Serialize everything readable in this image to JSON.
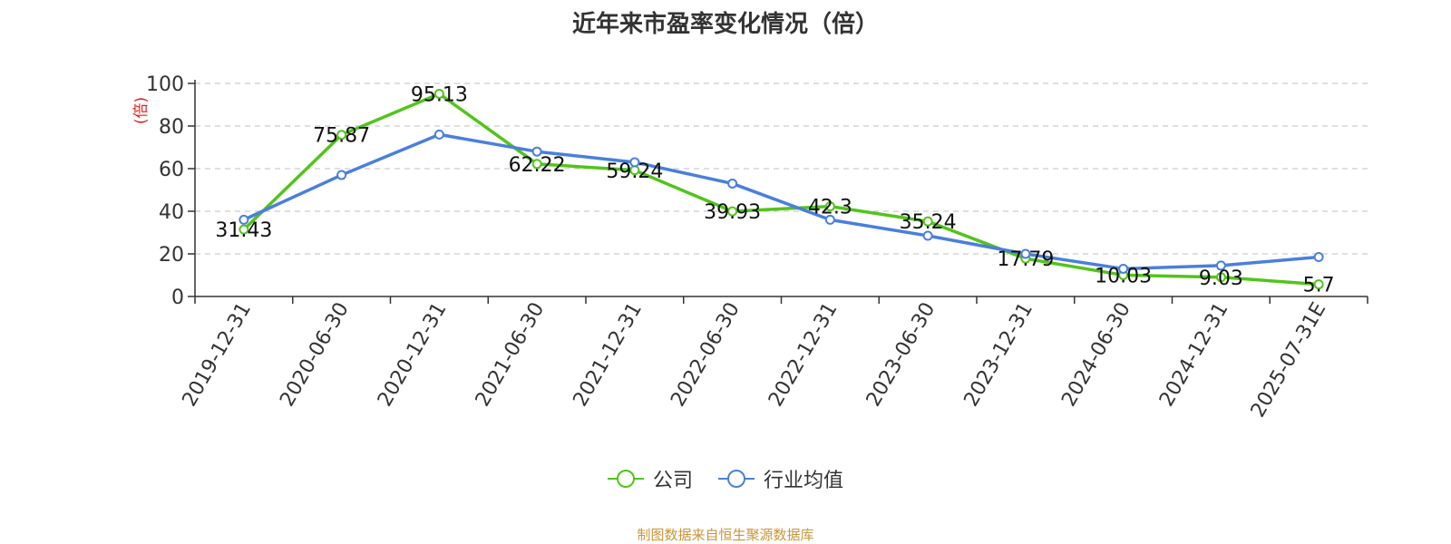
{
  "chart_data": {
    "type": "line",
    "title": "近年来市盈率变化情况（倍）",
    "ylabel": "(倍)",
    "xlabel": "",
    "categories": [
      "2019-12-31",
      "2020-06-30",
      "2020-12-31",
      "2021-06-30",
      "2021-12-31",
      "2022-06-30",
      "2022-12-31",
      "2023-06-30",
      "2023-12-31",
      "2024-06-30",
      "2024-12-31",
      "2025-07-31E"
    ],
    "series": [
      {
        "name": "公司",
        "color": "#52c41a",
        "values": [
          31.43,
          75.87,
          95.13,
          62.22,
          59.24,
          39.93,
          42.3,
          35.24,
          17.79,
          10.03,
          9.03,
          5.7
        ],
        "data_labels": true
      },
      {
        "name": "行业均值",
        "color": "#4a7fdb",
        "values": [
          36,
          57,
          76,
          68,
          63,
          53,
          36,
          28.5,
          20,
          13,
          14.5,
          18.5
        ],
        "data_labels": false
      }
    ],
    "ylim": [
      0,
      100
    ],
    "yticks": [
      0,
      20,
      40,
      60,
      80,
      100
    ],
    "grid": true,
    "legend_position": "bottom-center"
  },
  "source_note": "制图数据来自恒生聚源数据库",
  "colors": {
    "ylabel": "#e01e1e",
    "grid": "#cccccc",
    "source": "#c9953a"
  }
}
